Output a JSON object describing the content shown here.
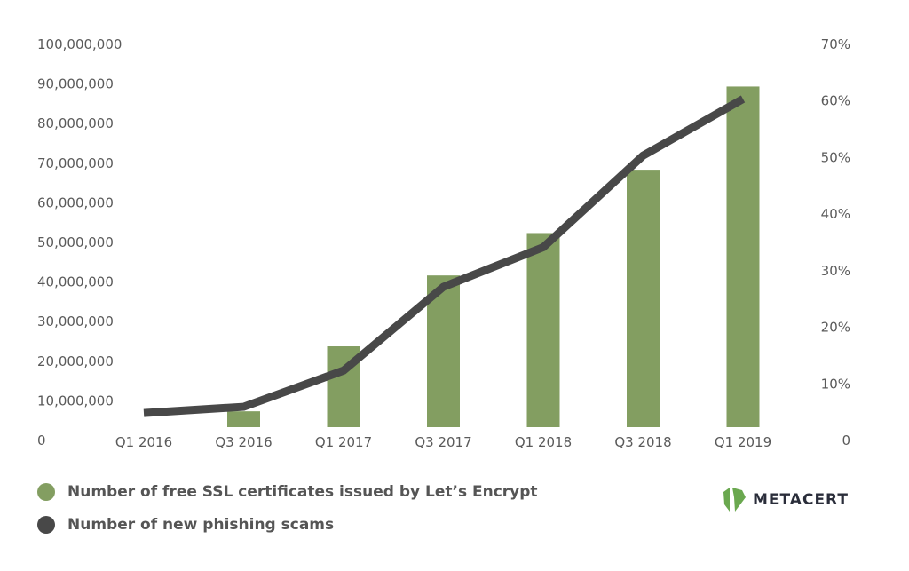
{
  "chart_data": {
    "type": "bar+line",
    "categories": [
      "Q1 2016",
      "Q3 2016",
      "Q1 2017",
      "Q3 2017",
      "Q1 2018",
      "Q3 2018",
      "Q1 2019"
    ],
    "series": [
      {
        "name": "Number of free SSL certificates issued by Let’s Encrypt",
        "type": "bar",
        "axis": "left",
        "color": "#839e61",
        "values": [
          0,
          4000000,
          20400000,
          38300000,
          49000000,
          65000000,
          86000000
        ]
      },
      {
        "name": "Number of new phishing scams",
        "type": "line",
        "axis": "right",
        "color": "#484848",
        "values": [
          2.5,
          3.6,
          10,
          24.8,
          31.8,
          48,
          58
        ]
      }
    ],
    "left_axis": {
      "ylim": [
        0,
        100000000
      ],
      "ticks": [
        "0",
        "10,000,000",
        "20,000,000",
        "30,000,000",
        "40,000,000",
        "50,000,000",
        "60,000,000",
        "70,000,000",
        "80,000,000",
        "90,000,000",
        "100,000,000"
      ]
    },
    "right_axis": {
      "ylim": [
        0,
        70
      ],
      "ticks": [
        "0",
        "10%",
        "20%",
        "30%",
        "40%",
        "50%",
        "60%",
        "70%"
      ]
    },
    "grid": false,
    "legend": "bottom-left"
  },
  "logo": {
    "text": "METACERT"
  }
}
